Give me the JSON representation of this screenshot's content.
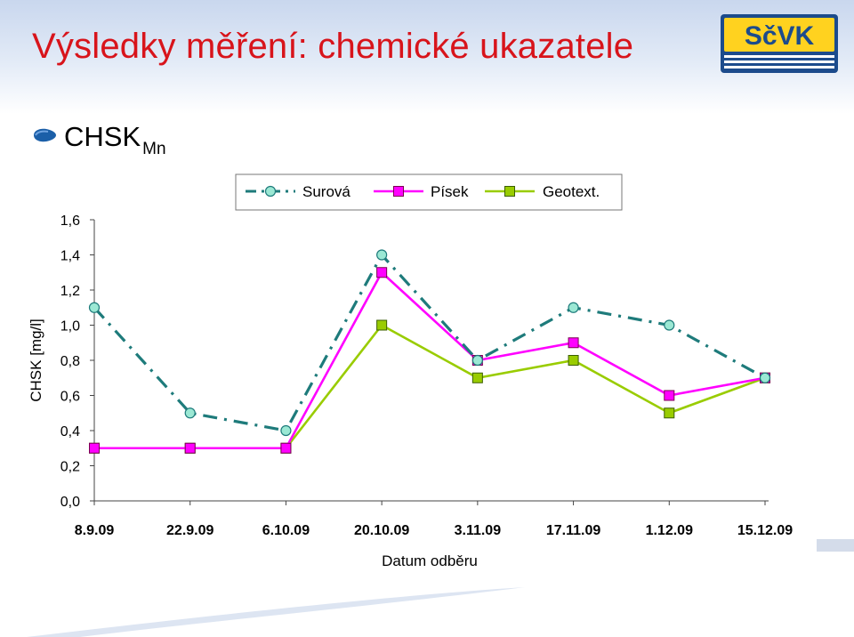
{
  "slide": {
    "title": "Výsledky měření: chemické ukazatele",
    "subtitle_main": "CHSK",
    "subtitle_sub": "Mn",
    "logo_text": "SčVK"
  },
  "colors": {
    "title": "#d8141b",
    "surova": "#1e7b7b",
    "pisek": "#ff00ff",
    "geotext": "#99cc00",
    "bullet": "#1b5fa8",
    "logo_bg": "#1c4b8c",
    "logo_fill": "#ffd21f"
  },
  "chart_data": {
    "type": "line",
    "xlabel": "Datum odběru",
    "ylabel": "CHSK [mg/l]",
    "categories": [
      "8.9.09",
      "22.9.09",
      "6.10.09",
      "20.10.09",
      "3.11.09",
      "17.11.09",
      "1.12.09",
      "15.12.09"
    ],
    "ylim": [
      0,
      1.6
    ],
    "yticks": [
      "0,0",
      "0,2",
      "0,4",
      "0,6",
      "0,8",
      "1,0",
      "1,2",
      "1,4",
      "1,6"
    ],
    "grid": false,
    "legend": "top",
    "series": [
      {
        "name": "Surová",
        "values": [
          1.1,
          0.5,
          0.4,
          1.4,
          0.8,
          1.1,
          1.0,
          0.7
        ],
        "style": "dash-dot",
        "marker": "circle",
        "color": "#1e7b7b"
      },
      {
        "name": "Písek",
        "values": [
          0.3,
          0.3,
          0.3,
          1.3,
          0.8,
          0.9,
          0.6,
          0.7
        ],
        "style": "solid",
        "marker": "square",
        "color": "#ff00ff"
      },
      {
        "name": "Geotext.",
        "values": [
          0.3,
          0.3,
          0.3,
          1.0,
          0.7,
          0.8,
          0.5,
          0.7
        ],
        "style": "solid",
        "marker": "square",
        "color": "#99cc00"
      }
    ]
  }
}
